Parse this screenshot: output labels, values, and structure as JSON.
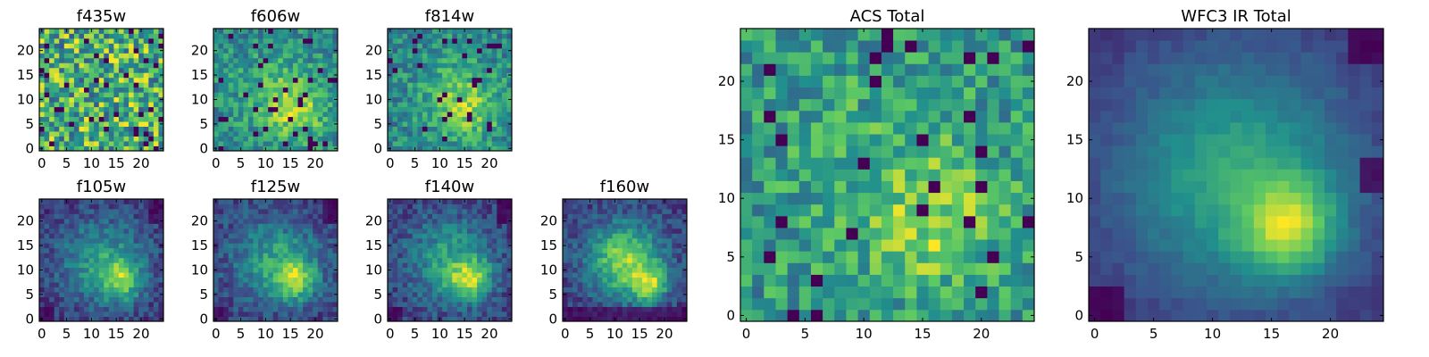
{
  "chart_data": [
    {
      "type": "heatmap",
      "title": "f435w",
      "xticks": [
        "0",
        "5",
        "10",
        "15",
        "20"
      ],
      "yticks": [
        "0",
        "5",
        "10",
        "15",
        "20"
      ],
      "xlim": [
        -0.5,
        24.5
      ],
      "ylim": [
        -0.5,
        24.5
      ],
      "grid_size": 25,
      "colormap": "viridis",
      "pattern": "noise"
    },
    {
      "type": "heatmap",
      "title": "f606w",
      "xticks": [
        "0",
        "5",
        "10",
        "15",
        "20"
      ],
      "yticks": [
        "0",
        "5",
        "10",
        "15",
        "20"
      ],
      "xlim": [
        -0.5,
        24.5
      ],
      "ylim": [
        -0.5,
        24.5
      ],
      "grid_size": 25,
      "colormap": "viridis",
      "pattern": "weak-source",
      "peak": [
        16,
        8
      ]
    },
    {
      "type": "heatmap",
      "title": "f814w",
      "xticks": [
        "0",
        "5",
        "10",
        "15",
        "20"
      ],
      "yticks": [
        "0",
        "5",
        "10",
        "15",
        "20"
      ],
      "xlim": [
        -0.5,
        24.5
      ],
      "ylim": [
        -0.5,
        24.5
      ],
      "grid_size": 25,
      "colormap": "viridis",
      "pattern": "weak-source",
      "peak": [
        16,
        8
      ]
    },
    {
      "type": "heatmap",
      "title": "f105w",
      "xticks": [
        "0",
        "5",
        "10",
        "15",
        "20"
      ],
      "yticks": [
        "0",
        "5",
        "10",
        "15",
        "20"
      ],
      "xlim": [
        -0.5,
        24.5
      ],
      "ylim": [
        -0.5,
        24.5
      ],
      "grid_size": 25,
      "colormap": "viridis",
      "pattern": "source",
      "peak": [
        16,
        8
      ]
    },
    {
      "type": "heatmap",
      "title": "f125w",
      "xticks": [
        "0",
        "5",
        "10",
        "15",
        "20"
      ],
      "yticks": [
        "0",
        "5",
        "10",
        "15",
        "20"
      ],
      "xlim": [
        -0.5,
        24.5
      ],
      "ylim": [
        -0.5,
        24.5
      ],
      "grid_size": 25,
      "colormap": "viridis",
      "pattern": "source",
      "peak": [
        16,
        8
      ]
    },
    {
      "type": "heatmap",
      "title": "f140w",
      "xticks": [
        "0",
        "5",
        "10",
        "15",
        "20"
      ],
      "yticks": [
        "0",
        "5",
        "10",
        "15",
        "20"
      ],
      "xlim": [
        -0.5,
        24.5
      ],
      "ylim": [
        -0.5,
        24.5
      ],
      "grid_size": 25,
      "colormap": "viridis",
      "pattern": "source",
      "peak": [
        16,
        8
      ]
    },
    {
      "type": "heatmap",
      "title": "f160w",
      "xticks": [
        "0",
        "5",
        "10",
        "15",
        "20"
      ],
      "yticks": [
        "0",
        "5",
        "10",
        "15",
        "20"
      ],
      "xlim": [
        -0.5,
        24.5
      ],
      "ylim": [
        -0.5,
        24.5
      ],
      "grid_size": 25,
      "colormap": "viridis",
      "pattern": "triangle",
      "peak": [
        17,
        7
      ]
    },
    {
      "type": "heatmap",
      "title": "ACS Total",
      "xticks": [
        "0",
        "5",
        "10",
        "15",
        "20"
      ],
      "yticks": [
        "0",
        "5",
        "10",
        "15",
        "20"
      ],
      "xlim": [
        -0.5,
        24.5
      ],
      "ylim": [
        -0.5,
        24.5
      ],
      "grid_size": 25,
      "colormap": "viridis",
      "pattern": "acs",
      "peak": [
        16,
        8
      ]
    },
    {
      "type": "heatmap",
      "title": "WFC3 IR Total",
      "xticks": [
        "0",
        "5",
        "10",
        "15",
        "20"
      ],
      "yticks": [
        "0",
        "5",
        "10",
        "15",
        "20"
      ],
      "xlim": [
        -0.5,
        24.5
      ],
      "ylim": [
        -0.5,
        24.5
      ],
      "grid_size": 25,
      "colormap": "viridis",
      "pattern": "smooth",
      "peak": [
        16.5,
        7.5
      ]
    }
  ],
  "colors": {
    "viridis": [
      "#440154",
      "#3b528b",
      "#21908d",
      "#5dc963",
      "#fde725"
    ]
  }
}
